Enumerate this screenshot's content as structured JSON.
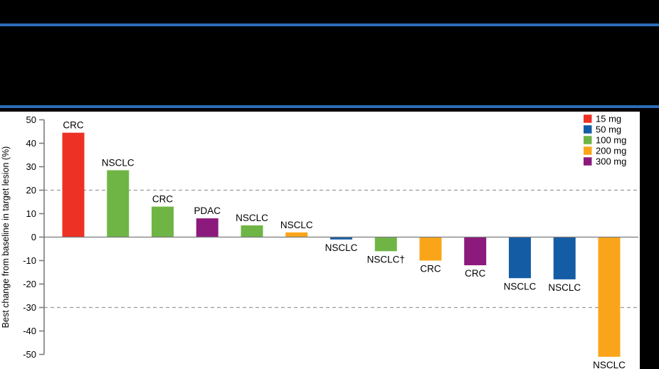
{
  "header": {
    "style": "redacted-black-band",
    "rule_color": "#2B6CB8",
    "background": "#000000"
  },
  "panel": {
    "background": "#FFFFFF",
    "right_black_strip_x": 899
  },
  "chart_data": {
    "type": "bar",
    "subtype": "waterfall",
    "title": "",
    "xlabel": "",
    "ylabel": "Best change from baseline in target lesion (%)",
    "ylim": [
      -50,
      50
    ],
    "yticks": [
      50,
      40,
      30,
      20,
      10,
      0,
      -10,
      -20,
      -30,
      -40,
      -50
    ],
    "reference_lines": [
      20,
      -30
    ],
    "reference_line_style": "dashed gray",
    "zero_line": true,
    "grid": false,
    "legend": {
      "position": "top-right",
      "entries": [
        {
          "label": "15 mg",
          "color": "#ED3124"
        },
        {
          "label": "50 mg",
          "color": "#145DA5"
        },
        {
          "label": "100 mg",
          "color": "#6FB545"
        },
        {
          "label": "200 mg",
          "color": "#FAA519"
        },
        {
          "label": "300 mg",
          "color": "#8C1A7C"
        }
      ]
    },
    "bars": [
      {
        "label": "CRC",
        "value": 44.5,
        "dose": "15 mg",
        "color": "#ED3124"
      },
      {
        "label": "NSCLC",
        "value": 28.5,
        "dose": "100 mg",
        "color": "#6FB545"
      },
      {
        "label": "CRC",
        "value": 13,
        "dose": "100 mg",
        "color": "#6FB545"
      },
      {
        "label": "PDAC",
        "value": 8,
        "dose": "300 mg",
        "color": "#8C1A7C"
      },
      {
        "label": "NSCLC",
        "value": 5,
        "dose": "100 mg",
        "color": "#6FB545"
      },
      {
        "label": "NSCLC",
        "value": 2,
        "dose": "200 mg",
        "color": "#FAA519"
      },
      {
        "label": "NSCLC",
        "value": -1,
        "dose": "50 mg",
        "color": "#145DA5"
      },
      {
        "label": "NSCLC†",
        "value": -6,
        "dose": "100 mg",
        "color": "#6FB545"
      },
      {
        "label": "CRC",
        "value": -10,
        "dose": "200 mg",
        "color": "#FAA519"
      },
      {
        "label": "CRC",
        "value": -12,
        "dose": "300 mg",
        "color": "#8C1A7C"
      },
      {
        "label": "NSCLC",
        "value": -17.5,
        "dose": "50 mg",
        "color": "#145DA5"
      },
      {
        "label": "NSCLC",
        "value": -18,
        "dose": "50 mg",
        "color": "#145DA5"
      },
      {
        "label": "NSCLC",
        "value": -51,
        "dose": "200 mg",
        "color": "#FAA519"
      }
    ],
    "colors": {
      "axis": "#7B7B7B",
      "zero_line": "#7B7B7B",
      "reference_line": "#9A9A9A",
      "text": "#000000"
    }
  }
}
